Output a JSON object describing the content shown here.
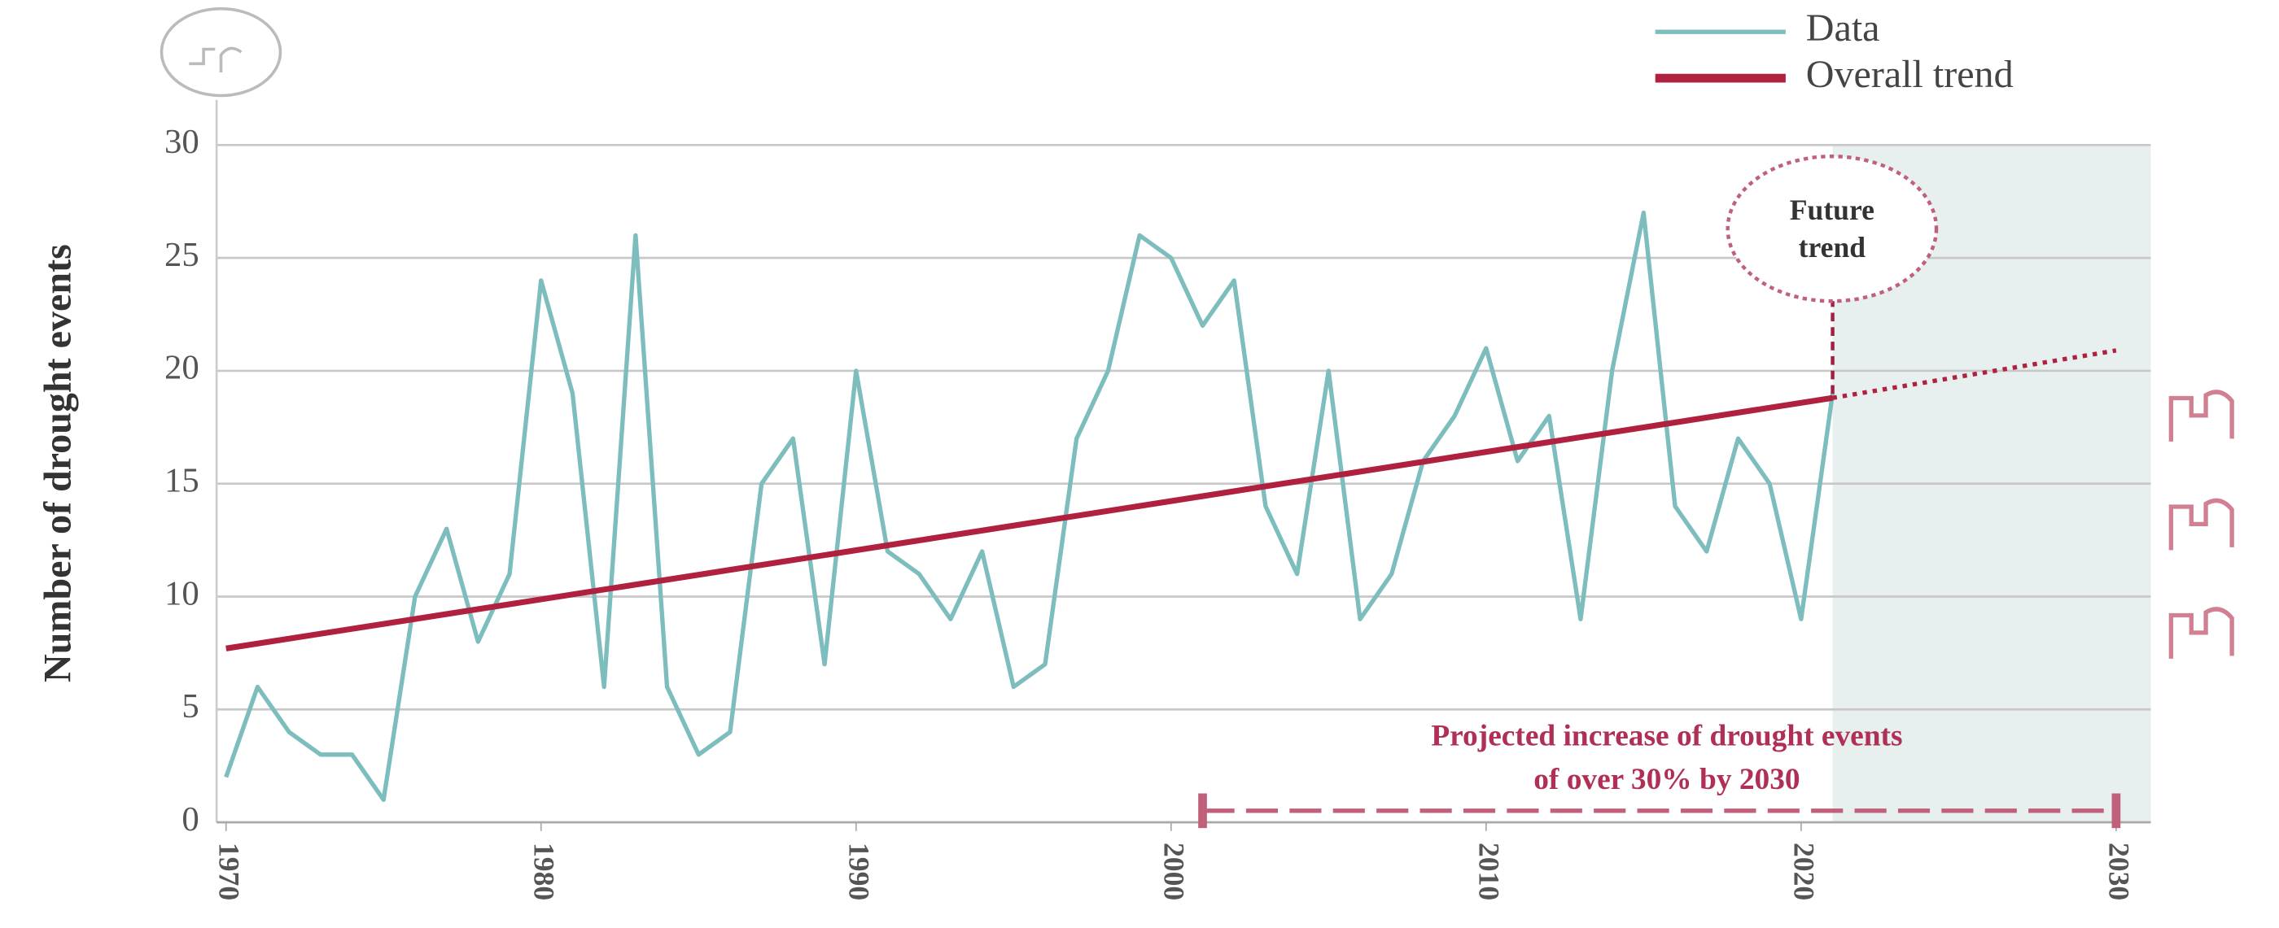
{
  "chart_data": {
    "type": "line",
    "y_label": "Number of drought events",
    "x": [
      1970,
      1971,
      1972,
      1973,
      1974,
      1975,
      1976,
      1977,
      1978,
      1979,
      1980,
      1981,
      1982,
      1983,
      1984,
      1985,
      1986,
      1987,
      1988,
      1989,
      1990,
      1991,
      1992,
      1993,
      1994,
      1995,
      1996,
      1997,
      1998,
      1999,
      2000,
      2001,
      2002,
      2003,
      2004,
      2005,
      2006,
      2007,
      2008,
      2009,
      2010,
      2011,
      2012,
      2013,
      2014,
      2015,
      2016,
      2017,
      2018,
      2019,
      2020,
      2021
    ],
    "series": [
      {
        "name": "Data",
        "color": "#7dbdbd",
        "values": [
          2,
          6,
          4,
          3,
          3,
          1,
          10,
          13,
          8,
          11,
          24,
          19,
          6,
          26,
          6,
          3,
          4,
          15,
          17,
          7,
          20,
          12,
          11,
          9,
          12,
          6,
          7,
          17,
          20,
          26,
          25,
          22,
          24,
          14,
          11,
          20,
          9,
          11,
          16,
          18,
          21,
          16,
          18,
          9,
          20,
          27,
          14,
          12,
          17,
          15,
          9,
          19
        ]
      },
      {
        "name": "Overall trend",
        "color": "#b0203f",
        "x": [
          1970,
          2021
        ],
        "values": [
          7.7,
          18.8
        ]
      }
    ],
    "projection": {
      "x": [
        2021,
        2030
      ],
      "values": [
        18.8,
        20.9
      ],
      "color": "#b0203f"
    },
    "future_shade": {
      "from": 2021,
      "color": "#e8efef"
    },
    "future_label": [
      "Future",
      "trend"
    ],
    "bracket": {
      "x": [
        2001,
        2030
      ],
      "lines": [
        "Projected increase of drought events",
        "of over 30% by 2030"
      ],
      "color": "#c0607a"
    },
    "xlim": [
      1969.7,
      2031.1
    ],
    "xticks": [
      1970,
      1980,
      1990,
      2000,
      2010,
      2020,
      2030
    ],
    "ylim": [
      0,
      32
    ],
    "yticks": [
      0,
      5,
      10,
      15,
      20,
      25,
      30
    ],
    "grid": true,
    "legend": "top-right"
  }
}
